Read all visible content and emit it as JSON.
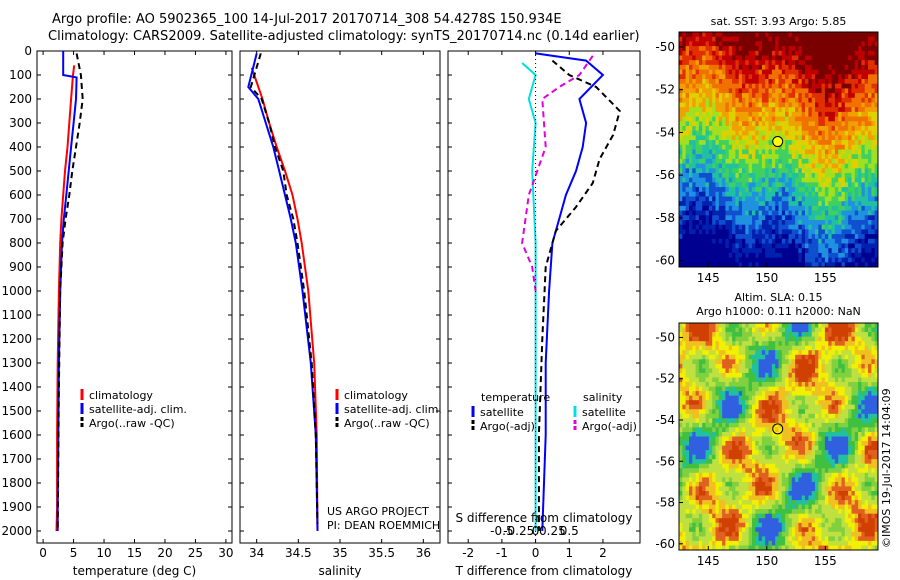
{
  "header": {
    "title_line1": "Argo profile: AO 5902365_100 14-Jul-2017 20170714_308 54.4278S 150.934E",
    "title_line2": "Climatology: CARS2009. Satellite-adjusted climatology: synTS_20170714.nc (0.14d earlier)"
  },
  "chart_data": [
    {
      "type": "line",
      "name": "temperature-profile",
      "xlabel": "temperature (deg C)",
      "ylabel": "",
      "xlim": [
        -1,
        31
      ],
      "ylim": [
        2050,
        0
      ],
      "xticks": [
        0,
        5,
        10,
        15,
        20,
        25,
        30
      ],
      "yticks": [
        0,
        100,
        200,
        300,
        400,
        500,
        600,
        700,
        800,
        900,
        1000,
        1100,
        1200,
        1300,
        1400,
        1500,
        1600,
        1700,
        1800,
        1900,
        2000
      ],
      "series": [
        {
          "name": "climatology",
          "color": "#ff0000",
          "dash": "",
          "x": [
            5.1,
            4.9,
            4.6,
            4.3,
            4.0,
            3.6,
            3.3,
            3.0,
            2.8,
            2.6,
            2.4,
            2.3,
            2.3,
            2.2
          ],
          "y": [
            60,
            100,
            200,
            300,
            400,
            500,
            600,
            700,
            800,
            1000,
            1300,
            1600,
            1900,
            2000
          ]
        },
        {
          "name": "satellite-adj. clim.",
          "color": "#0000ff",
          "dash": "",
          "x": [
            3.3,
            3.3,
            5.5,
            5.4,
            5.0,
            4.6,
            4.2,
            3.8,
            3.4,
            3.1,
            2.8,
            2.6,
            2.5,
            2.4,
            2.4
          ],
          "y": [
            0,
            100,
            110,
            200,
            300,
            400,
            500,
            600,
            700,
            800,
            1000,
            1300,
            1600,
            1900,
            2000
          ]
        },
        {
          "name": "Argo(..raw -QC)",
          "color": "#000000",
          "dash": "6,4",
          "x": [
            5.5,
            6.2,
            6.5,
            6.0,
            5.4,
            4.8,
            4.3,
            3.7,
            3.2,
            2.8,
            2.6,
            2.5,
            2.4
          ],
          "y": [
            10,
            100,
            200,
            300,
            400,
            500,
            600,
            700,
            800,
            1000,
            1400,
            1700,
            2000
          ]
        }
      ],
      "legend": [
        "climatology",
        "satellite-adj. clim.",
        "Argo(..raw -QC)"
      ],
      "legend_position": "lower-right"
    },
    {
      "type": "line",
      "name": "salinity-profile",
      "xlabel": "salinity",
      "ylabel": "",
      "xlim": [
        33.8,
        36.2
      ],
      "ylim": [
        2050,
        0
      ],
      "xticks": [
        34,
        34.5,
        35,
        35.5,
        36
      ],
      "series": [
        {
          "name": "climatology",
          "color": "#ff0000",
          "dash": "",
          "x": [
            33.94,
            33.97,
            34.07,
            34.15,
            34.24,
            34.34,
            34.43,
            34.49,
            34.54,
            34.62,
            34.69,
            34.72,
            34.73
          ],
          "y": [
            70,
            100,
            200,
            300,
            400,
            500,
            600,
            700,
            800,
            1000,
            1300,
            1600,
            2000
          ]
        },
        {
          "name": "satellite-adj. clim.",
          "color": "#0000ff",
          "dash": "",
          "x": [
            34.0,
            33.9,
            34.02,
            34.11,
            34.2,
            34.27,
            34.34,
            34.41,
            34.47,
            34.55,
            34.65,
            34.71,
            34.73
          ],
          "y": [
            10,
            150,
            200,
            300,
            400,
            500,
            600,
            700,
            800,
            1000,
            1300,
            1600,
            2000
          ]
        },
        {
          "name": "Argo(..raw -QC)",
          "color": "#000000",
          "dash": "6,4",
          "x": [
            34.05,
            33.93,
            34.06,
            34.15,
            34.22,
            34.32,
            34.36,
            34.44,
            34.49,
            34.57,
            34.66,
            34.71,
            34.73
          ],
          "y": [
            10,
            150,
            200,
            300,
            400,
            500,
            600,
            700,
            800,
            1000,
            1300,
            1600,
            1970
          ]
        }
      ],
      "legend": [
        "climatology",
        "satellite-adj. clim.",
        "Argo(..raw -QC)"
      ],
      "legend_position": "lower-right",
      "annotation": [
        "US ARGO PROJECT",
        "PI: DEAN ROEMMICH"
      ]
    },
    {
      "type": "line",
      "name": "difference-profile",
      "xlabel": "T difference from climatology",
      "xlabel_top": "S difference from climatology",
      "xlim": [
        -2.6,
        3.1
      ],
      "ylim": [
        2050,
        0
      ],
      "xticks": [
        -2,
        -1,
        0,
        1,
        2
      ],
      "xticks_top_labels": [
        "-0.5",
        "-0.25",
        "0",
        "0.25",
        "0.5"
      ],
      "series": [
        {
          "name": "temperature satellite",
          "color": "#0000ff",
          "dash": "",
          "x": [
            0.0,
            1.5,
            2.0,
            1.3,
            1.5,
            1.4,
            1.2,
            0.9,
            0.7,
            0.5,
            0.4,
            0.3,
            0.3,
            0.2
          ],
          "y": [
            10,
            40,
            100,
            200,
            300,
            400,
            500,
            600,
            700,
            800,
            1000,
            1300,
            1600,
            2000
          ]
        },
        {
          "name": "temperature Argo(-adj)",
          "color": "#000000",
          "dash": "6,4",
          "x": [
            0.5,
            1.0,
            1.8,
            2.5,
            2.3,
            1.9,
            1.7,
            1.2,
            0.6,
            0.3,
            0.2,
            0.1,
            0.1
          ],
          "y": [
            40,
            100,
            150,
            250,
            350,
            450,
            550,
            650,
            750,
            900,
            1200,
            1600,
            2000
          ]
        },
        {
          "name": "salinity satellite",
          "color": "#00e0e0",
          "dash": "",
          "x": [
            -0.4,
            0.0,
            -0.2,
            0.0,
            -0.1,
            0.0,
            0.0,
            0.0
          ],
          "y": [
            50,
            100,
            200,
            300,
            500,
            800,
            1200,
            2000
          ]
        },
        {
          "name": "salinity Argo(-adj)",
          "color": "#e000e0",
          "dash": "6,4",
          "x": [
            1.7,
            1.3,
            0.7,
            0.2,
            0.3,
            -0.2,
            -0.3,
            -0.4,
            -0.1,
            0.0
          ],
          "y": [
            20,
            100,
            150,
            200,
            400,
            600,
            700,
            800,
            900,
            1000
          ]
        }
      ],
      "legend_titles": [
        "temperature",
        "salinity"
      ],
      "legend": [
        "satellite",
        "Argo(-adj)",
        "satellite",
        "Argo(-adj)"
      ],
      "legend_position": "lower-center"
    },
    {
      "type": "heatmap",
      "name": "sst-map",
      "title": "sat. SST: 3.93 Argo: 5.85",
      "xlim": [
        142.5,
        159.5
      ],
      "ylim": [
        -60.3,
        -49.3
      ],
      "xticks": [
        145,
        150,
        155
      ],
      "yticks": [
        -50,
        -52,
        -54,
        -56,
        -58,
        -60
      ],
      "marker": {
        "lon": 150.934,
        "lat": -54.4278
      }
    },
    {
      "type": "heatmap",
      "name": "sla-map",
      "title": "Altim. SLA: 0.15",
      "subtitle": "Argo h1000: 0.11 h2000: NaN",
      "xlim": [
        142.5,
        159.5
      ],
      "ylim": [
        -60.3,
        -49.3
      ],
      "xticks": [
        145,
        150,
        155
      ],
      "yticks": [
        -50,
        -52,
        -54,
        -56,
        -58,
        -60
      ],
      "marker": {
        "lon": 150.934,
        "lat": -54.4278
      },
      "watermark": "©IMOS 19-Jul-2017 14:04:09"
    }
  ]
}
